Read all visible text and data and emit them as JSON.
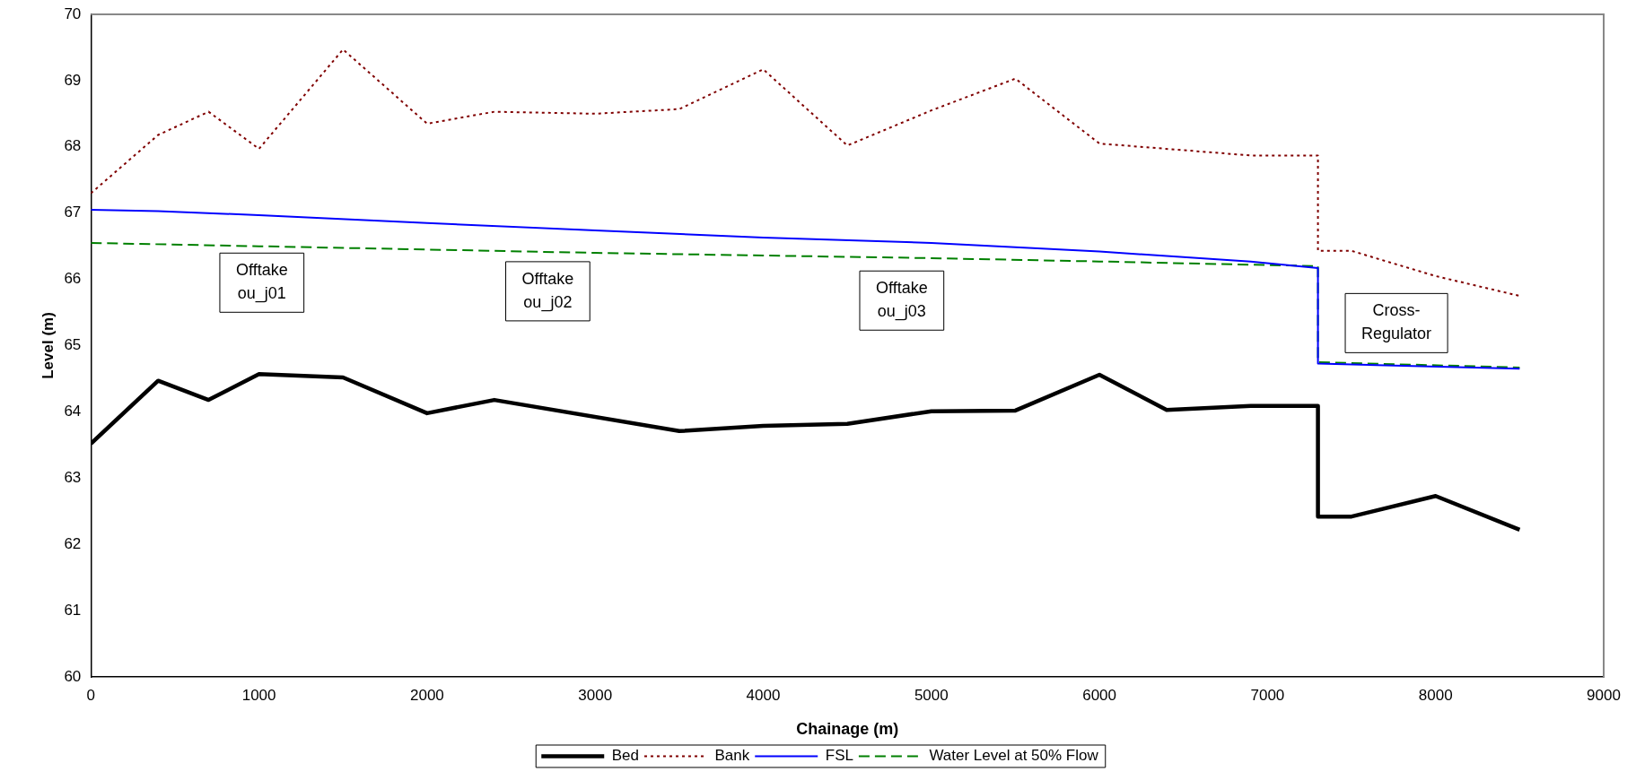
{
  "chart_data": {
    "type": "line",
    "xlabel": "Chainage (m)",
    "ylabel": "Level (m)",
    "xlim": [
      0,
      9000
    ],
    "xticks": [
      0,
      1000,
      2000,
      3000,
      4000,
      5000,
      6000,
      7000,
      8000,
      9000
    ],
    "ylim": [
      60,
      70
    ],
    "yticks": [
      60,
      61,
      62,
      63,
      64,
      65,
      66,
      67,
      68,
      69,
      70
    ],
    "grid": false,
    "legend": "bottom",
    "marker": "none",
    "series": [
      {
        "name": "Bed",
        "color": "#000000",
        "line_style": "solid",
        "x": [
          0,
          400,
          700,
          1000,
          1500,
          2000,
          2400,
          3500,
          4000,
          4500,
          5000,
          5500,
          6000,
          6400,
          6900,
          7300,
          7300,
          7500,
          8000,
          8500
        ],
        "values": [
          63.52,
          64.47,
          64.18,
          64.57,
          64.52,
          63.98,
          64.18,
          63.71,
          63.79,
          63.82,
          64.01,
          64.02,
          64.56,
          64.03,
          64.09,
          64.09,
          62.42,
          62.42,
          62.73,
          62.22
        ]
      },
      {
        "name": "Bank",
        "color": "#800000",
        "line_style": "dotted",
        "x": [
          0,
          400,
          700,
          1000,
          1500,
          2000,
          2400,
          3000,
          3500,
          4000,
          4500,
          5000,
          5500,
          6000,
          6900,
          7300,
          7300,
          7500,
          8000,
          8500
        ],
        "values": [
          67.3,
          68.18,
          68.53,
          67.97,
          69.47,
          68.35,
          68.53,
          68.5,
          68.57,
          69.17,
          68.02,
          68.55,
          69.03,
          68.05,
          67.87,
          67.87,
          66.43,
          66.43,
          66.05,
          65.75
        ]
      },
      {
        "name": "FSL",
        "color": "#0000ff",
        "line_style": "solid",
        "x": [
          0,
          400,
          1000,
          2000,
          3000,
          4000,
          5000,
          6000,
          6900,
          7300,
          7300,
          8500
        ],
        "values": [
          67.05,
          67.03,
          66.97,
          66.85,
          66.74,
          66.63,
          66.55,
          66.42,
          66.27,
          66.17,
          64.73,
          64.65
        ]
      },
      {
        "name": "Water Level at 50% Flow",
        "color": "#008000",
        "line_style": "dashed",
        "x": [
          0,
          1000,
          2000,
          3000,
          4000,
          5000,
          6000,
          7300,
          7300,
          8500
        ],
        "values": [
          66.55,
          66.5,
          66.45,
          66.4,
          66.36,
          66.32,
          66.27,
          66.2,
          64.75,
          64.67
        ]
      }
    ],
    "annotations": [
      "Offtake\nou_j01",
      "Offtake\nou_j02",
      "Offtake\nou_j03",
      "Cross-\nRegulator"
    ]
  }
}
